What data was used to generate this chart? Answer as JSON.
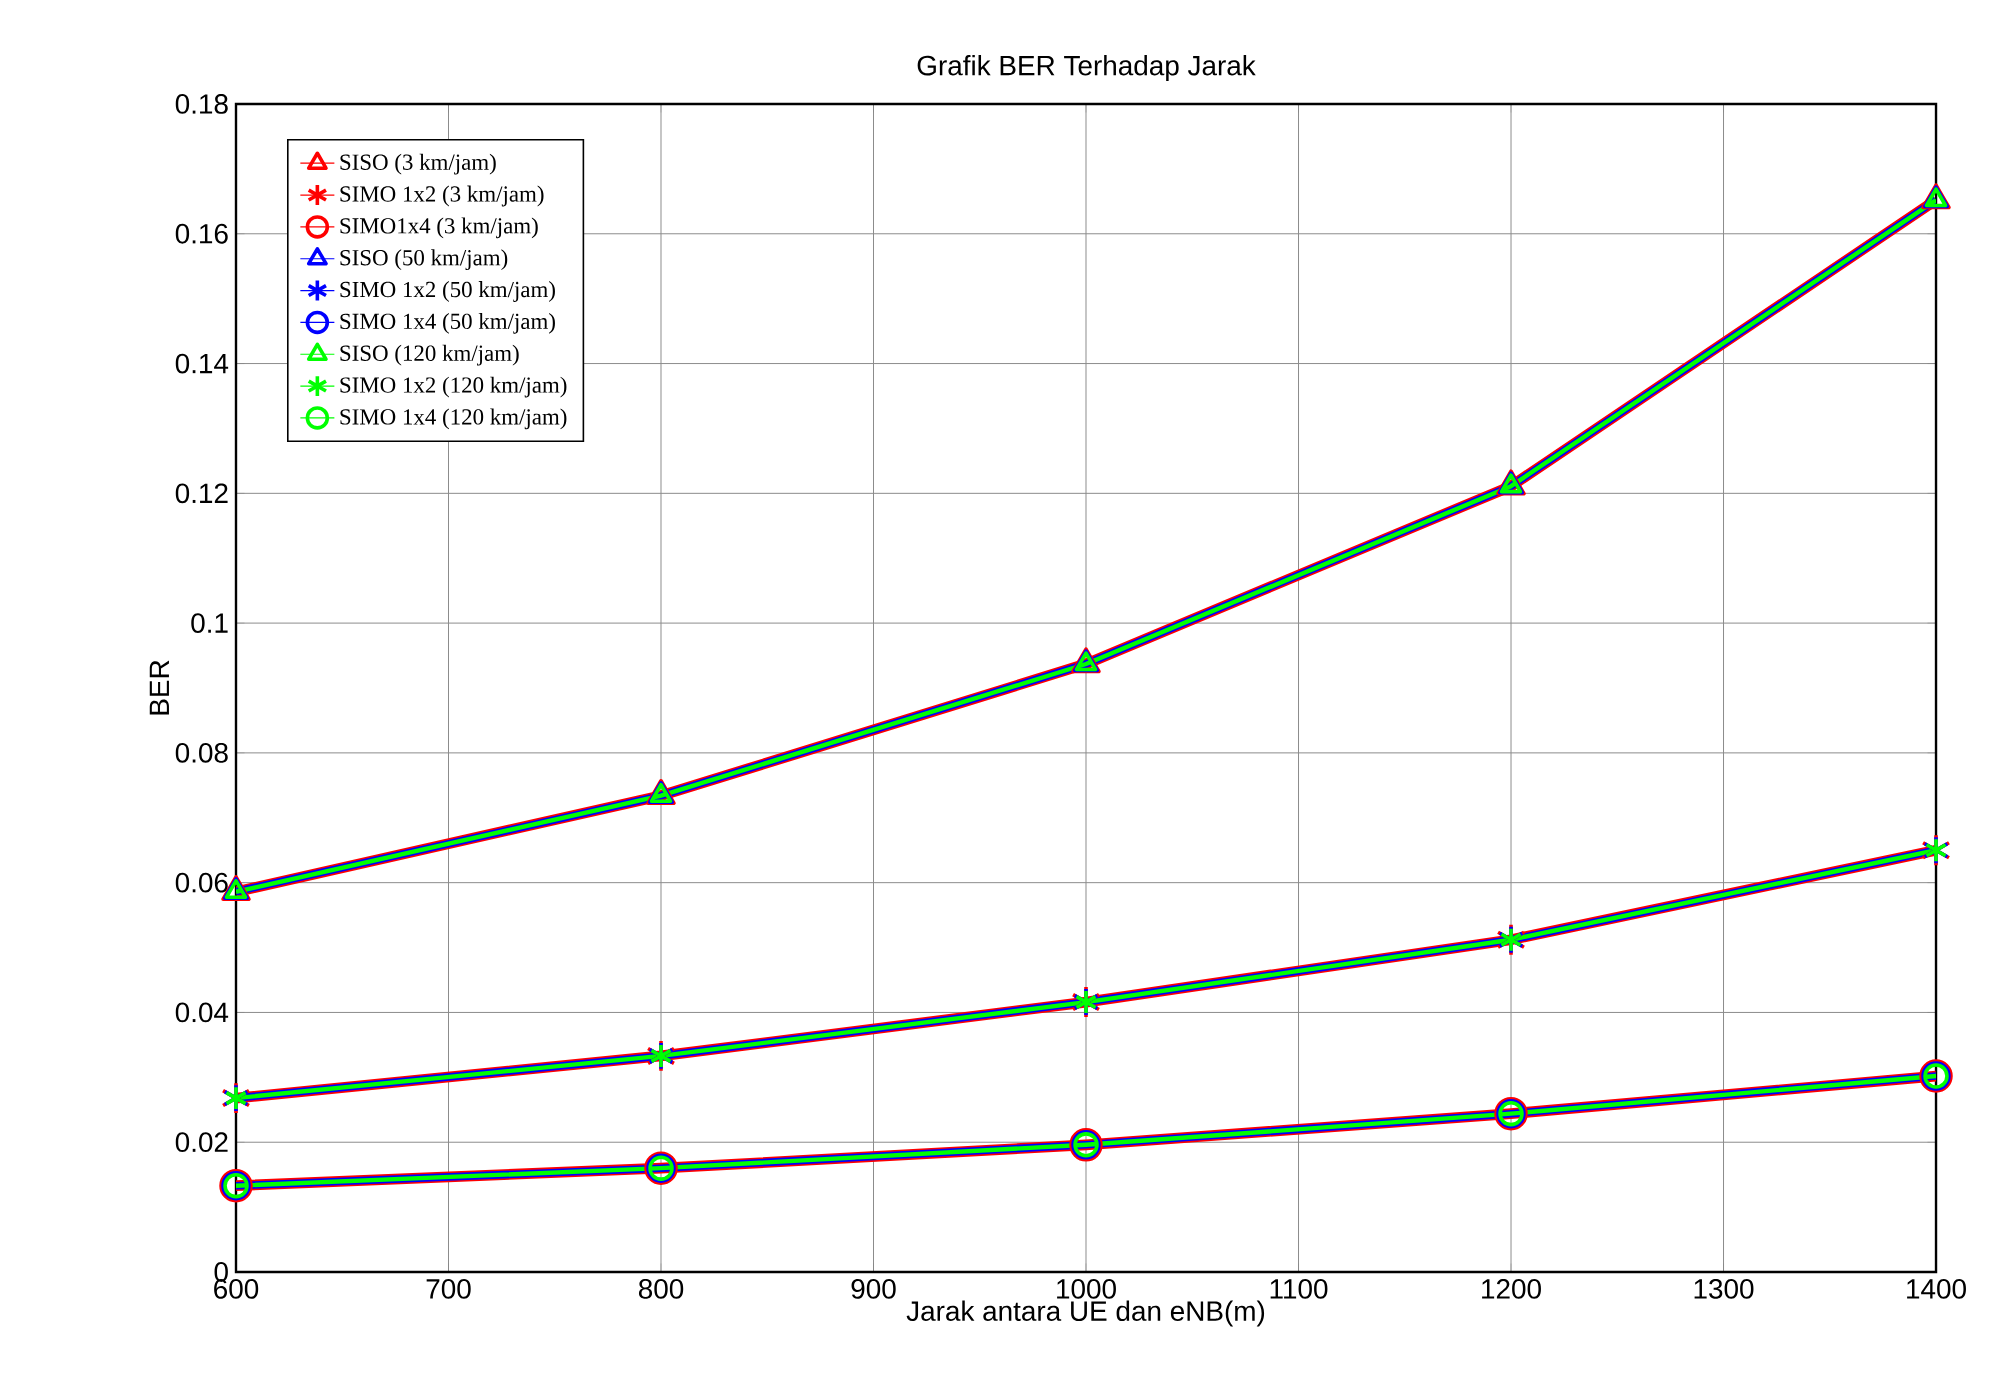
{
  "chart_data": {
    "type": "line",
    "title": "Grafik BER Terhadap Jarak",
    "xlabel": "Jarak antara UE dan eNB(m)",
    "ylabel": "BER",
    "x": [
      600,
      800,
      1000,
      1200,
      1400
    ],
    "xlim": [
      600,
      1400
    ],
    "xticks": [
      600,
      700,
      800,
      900,
      1000,
      1100,
      1200,
      1300,
      1400
    ],
    "ylim": [
      0,
      0.18
    ],
    "yticks": [
      0,
      0.02,
      0.04,
      0.06,
      0.08,
      0.1,
      0.12,
      0.14,
      0.16,
      0.18
    ],
    "grid": true,
    "legend": "top left",
    "series": [
      {
        "name": "SISO (3 km/jam)",
        "color": "#ff0000",
        "marker": "triangle",
        "values": [
          0.0586,
          0.0734,
          0.0937,
          0.1211,
          0.1652
        ]
      },
      {
        "name": "SIMO 1x2 (3 km/jam)",
        "color": "#ff0000",
        "marker": "cross",
        "values": [
          0.0268,
          0.0333,
          0.0416,
          0.0512,
          0.065
        ]
      },
      {
        "name": "SIMO1x4 (3 km/jam)",
        "color": "#ff0000",
        "marker": "circle",
        "values": [
          0.0133,
          0.016,
          0.0196,
          0.0244,
          0.0302
        ]
      },
      {
        "name": "SISO (50 km/jam)",
        "color": "#0000ff",
        "marker": "triangle",
        "values": [
          0.0586,
          0.0734,
          0.0937,
          0.1211,
          0.1652
        ]
      },
      {
        "name": "SIMO 1x2 (50 km/jam)",
        "color": "#0000ff",
        "marker": "cross",
        "values": [
          0.0268,
          0.0333,
          0.0416,
          0.0512,
          0.065
        ]
      },
      {
        "name": "SIMO 1x4 (50 km/jam)",
        "color": "#0000ff",
        "marker": "circle",
        "values": [
          0.0133,
          0.016,
          0.0196,
          0.0244,
          0.0302
        ]
      },
      {
        "name": "SISO (120 km/jam)",
        "color": "#00ff00",
        "marker": "triangle",
        "values": [
          0.0586,
          0.0734,
          0.0937,
          0.1211,
          0.1652
        ]
      },
      {
        "name": "SIMO 1x2 (120 km/jam)",
        "color": "#00ff00",
        "marker": "cross",
        "values": [
          0.0268,
          0.0333,
          0.0416,
          0.0512,
          0.065
        ]
      },
      {
        "name": "SIMO 1x4 (120 km/jam)",
        "color": "#00ff00",
        "marker": "circle",
        "values": [
          0.0133,
          0.016,
          0.0196,
          0.0244,
          0.0302
        ]
      }
    ]
  }
}
